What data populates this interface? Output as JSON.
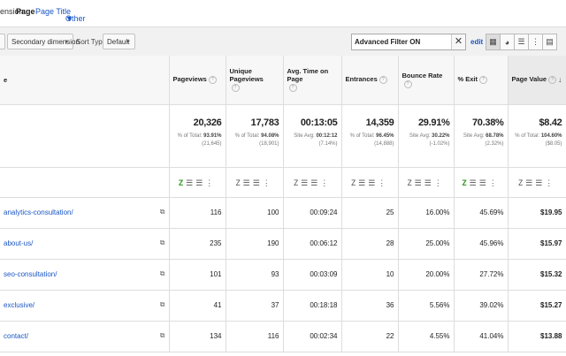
{
  "dimension_bar": {
    "label": "ension:",
    "selected": "Page",
    "options": [
      "Page Title",
      "Other"
    ]
  },
  "toolbar": {
    "secondary_dimension": "Secondary dimension",
    "sort_type_label": "Sort Type:",
    "sort_type_value": "Default",
    "filter_value": "Advanced Filter ON",
    "edit_label": "edit"
  },
  "columns": {
    "page": "e",
    "pageviews": "Pageviews",
    "unique_pageviews": "Unique Pageviews",
    "avg_time": "Avg. Time on Page",
    "entrances": "Entrances",
    "bounce_rate": "Bounce Rate",
    "exit": "% Exit",
    "page_value": "Page Value"
  },
  "totals": {
    "pageviews": {
      "value": "20,326",
      "sub1_prefix": "% of Total: ",
      "sub1_bold": "93.91%",
      "sub2": "(21,645)"
    },
    "unique_pageviews": {
      "value": "17,783",
      "sub1_prefix": "% of Total: ",
      "sub1_bold": "94.08%",
      "sub2": "(18,901)"
    },
    "avg_time": {
      "value": "00:13:05",
      "sub1_prefix": "Site Avg: ",
      "sub1_bold": "00:12:12",
      "sub2": "(7.14%)"
    },
    "entrances": {
      "value": "14,359",
      "sub1_prefix": "% of Total: ",
      "sub1_bold": "96.45%",
      "sub2": "(14,888)"
    },
    "bounce_rate": {
      "value": "29.91%",
      "sub1_prefix": "Site Avg: ",
      "sub1_bold": "30.22%",
      "sub2": "(-1.02%)"
    },
    "exit": {
      "value": "70.38%",
      "sub1_prefix": "Site Avg: ",
      "sub1_bold": "68.78%",
      "sub2": "(2.32%)"
    },
    "page_value": {
      "value": "$8.42",
      "sub1_prefix": "% of Total: ",
      "sub1_bold": "104.60%",
      "sub2": "($8.05)"
    }
  },
  "rows": [
    {
      "page": "analytics-consultation/",
      "pageviews": "116",
      "unique": "100",
      "avg_time": "00:09:24",
      "entrances": "25",
      "bounce": "16.00%",
      "exit": "45.69%",
      "value": "$19.95"
    },
    {
      "page": "about-us/",
      "pageviews": "235",
      "unique": "190",
      "avg_time": "00:06:12",
      "entrances": "28",
      "bounce": "25.00%",
      "exit": "45.96%",
      "value": "$15.97"
    },
    {
      "page": "seo-consultation/",
      "pageviews": "101",
      "unique": "93",
      "avg_time": "00:03:09",
      "entrances": "10",
      "bounce": "20.00%",
      "exit": "27.72%",
      "value": "$15.32"
    },
    {
      "page": "exclusive/",
      "pageviews": "41",
      "unique": "37",
      "avg_time": "00:18:18",
      "entrances": "36",
      "bounce": "5.56%",
      "exit": "39.02%",
      "value": "$15.27"
    },
    {
      "page": "contact/",
      "pageviews": "134",
      "unique": "116",
      "avg_time": "00:02:34",
      "entrances": "22",
      "bounce": "4.55%",
      "exit": "41.04%",
      "value": "$13.88"
    }
  ]
}
